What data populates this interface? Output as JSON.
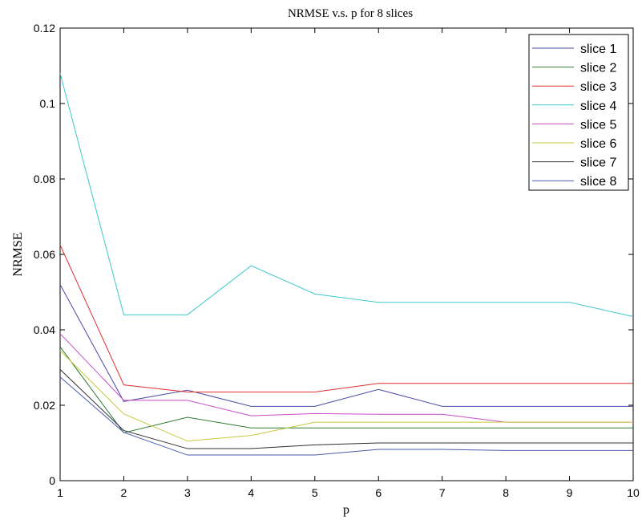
{
  "chart_data": {
    "type": "line",
    "title": "NRMSE v.s. p for 8 slices",
    "xlabel": "p",
    "ylabel": "NRMSE",
    "xlim": [
      1,
      10
    ],
    "ylim": [
      0,
      0.12
    ],
    "x": [
      1,
      2,
      3,
      4,
      5,
      6,
      7,
      8,
      9,
      10
    ],
    "xticks": [
      "1",
      "2",
      "3",
      "4",
      "5",
      "6",
      "7",
      "8",
      "9",
      "10"
    ],
    "yticks": [
      "0",
      "0.02",
      "0.04",
      "0.06",
      "0.08",
      "0.1",
      "0.12"
    ],
    "ytick_values": [
      0,
      0.02,
      0.04,
      0.06,
      0.08,
      0.1,
      0.12
    ],
    "grid": false,
    "legend_position": "top-right",
    "series": [
      {
        "name": "slice 1",
        "color": "#4a4aa8",
        "values": [
          0.052,
          0.021,
          0.024,
          0.0197,
          0.0197,
          0.0242,
          0.0197,
          0.0197,
          0.0197,
          0.0197
        ]
      },
      {
        "name": "slice 2",
        "color": "#2e7d32",
        "values": [
          0.0355,
          0.0127,
          0.0168,
          0.014,
          0.014,
          0.014,
          0.014,
          0.014,
          0.014,
          0.014
        ]
      },
      {
        "name": "slice 3",
        "color": "#e03030",
        "values": [
          0.0625,
          0.0254,
          0.0235,
          0.0235,
          0.0235,
          0.0258,
          0.0258,
          0.0258,
          0.0258,
          0.0258
        ]
      },
      {
        "name": "slice 4",
        "color": "#3cc8c8",
        "values": [
          0.108,
          0.044,
          0.044,
          0.057,
          0.0495,
          0.0473,
          0.0473,
          0.0473,
          0.0473,
          0.0435
        ]
      },
      {
        "name": "slice 5",
        "color": "#c84ec8",
        "values": [
          0.039,
          0.0213,
          0.0213,
          0.0172,
          0.0178,
          0.0176,
          0.0176,
          0.0155,
          0.0155,
          0.0155
        ]
      },
      {
        "name": "slice 6",
        "color": "#c8c83c",
        "values": [
          0.0345,
          0.0177,
          0.0105,
          0.012,
          0.0155,
          0.0155,
          0.0155,
          0.0155,
          0.0155,
          0.0155
        ]
      },
      {
        "name": "slice 7",
        "color": "#303030",
        "values": [
          0.0295,
          0.0133,
          0.0085,
          0.0085,
          0.0095,
          0.01,
          0.01,
          0.01,
          0.01,
          0.01
        ]
      },
      {
        "name": "slice 8",
        "color": "#4a5ab0",
        "values": [
          0.0275,
          0.0128,
          0.0068,
          0.0068,
          0.0068,
          0.0083,
          0.0083,
          0.008,
          0.008,
          0.008
        ]
      }
    ]
  }
}
